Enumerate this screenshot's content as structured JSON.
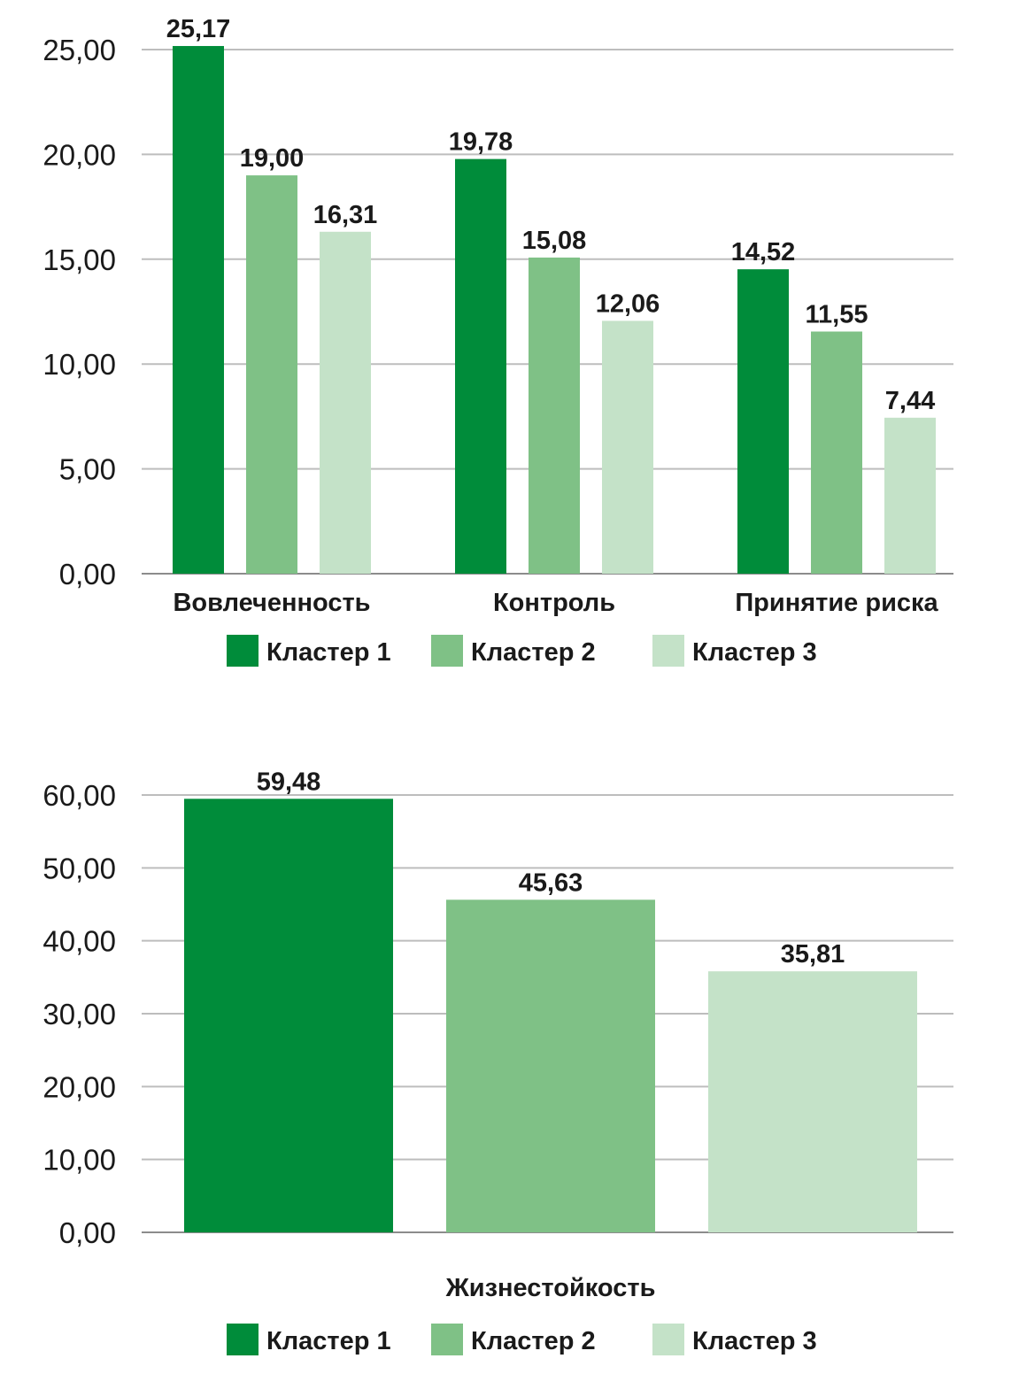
{
  "chart_data": [
    {
      "type": "bar",
      "categories": [
        "Вовлеченность",
        "Контроль",
        "Принятие риска"
      ],
      "series": [
        {
          "name": "Кластер 1",
          "values": [
            25.17,
            19.78,
            14.52
          ],
          "labels": [
            "25,17",
            "19,78",
            "14,52"
          ],
          "color": "#008c3a"
        },
        {
          "name": "Кластер 2",
          "values": [
            19.0,
            15.08,
            11.55
          ],
          "labels": [
            "19,00",
            "15,08",
            "11,55"
          ],
          "color": "#7fc186"
        },
        {
          "name": "Кластер 3",
          "values": [
            16.31,
            12.06,
            7.44
          ],
          "labels": [
            "16,31",
            "12,06",
            "7,44"
          ],
          "color": "#c4e2c8"
        }
      ],
      "ylim": [
        0,
        25
      ],
      "yticks": [
        0,
        5,
        10,
        15,
        20,
        25
      ],
      "ytick_labels": [
        "0,00",
        "5,00",
        "10,00",
        "15,00",
        "20,00",
        "25,00"
      ],
      "grid": true,
      "legend": "bottom"
    },
    {
      "type": "bar",
      "categories": [
        "Жизнестойкость"
      ],
      "series": [
        {
          "name": "Кластер 1",
          "values": [
            59.48
          ],
          "labels": [
            "59,48"
          ],
          "color": "#008c3a"
        },
        {
          "name": "Кластер 2",
          "values": [
            45.63
          ],
          "labels": [
            "45,63"
          ],
          "color": "#7fc186"
        },
        {
          "name": "Кластер 3",
          "values": [
            35.81
          ],
          "labels": [
            "35,81"
          ],
          "color": "#c4e2c8"
        }
      ],
      "ylim": [
        0,
        60
      ],
      "yticks": [
        0,
        10,
        20,
        30,
        40,
        50,
        60
      ],
      "ytick_labels": [
        "0,00",
        "10,00",
        "20,00",
        "30,00",
        "40,00",
        "50,00",
        "60,00"
      ],
      "grid": true,
      "legend": "bottom"
    }
  ]
}
